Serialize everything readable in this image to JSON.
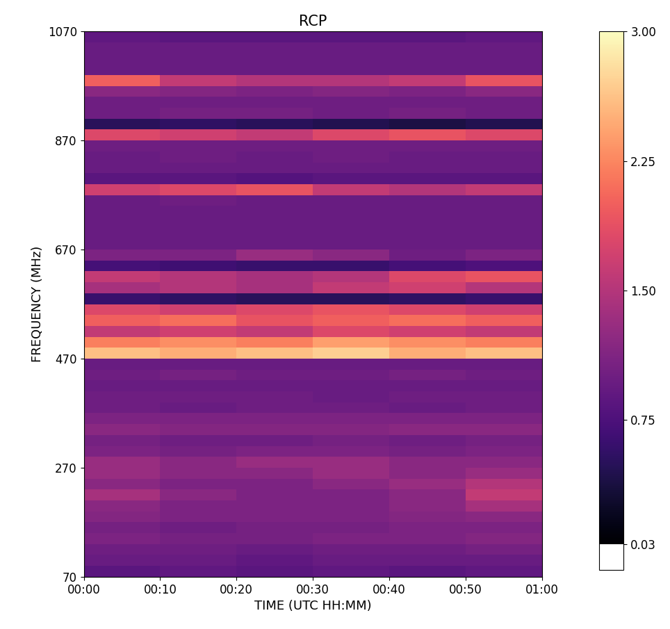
{
  "chart_data": {
    "type": "heatmap",
    "title": "RCP",
    "x_label": "TIME (UTC HH:MM)",
    "y_label": "FREQUENCY (MHz)",
    "color": "magma",
    "xlim": [
      0,
      60
    ],
    "xticks": [
      {
        "value": 0,
        "label": "00:00"
      },
      {
        "value": 10,
        "label": "00:10"
      },
      {
        "value": 20,
        "label": "00:20"
      },
      {
        "value": 30,
        "label": "00:30"
      },
      {
        "value": 40,
        "label": "00:40"
      },
      {
        "value": 50,
        "label": "00:50"
      },
      {
        "value": 60,
        "label": "01:00"
      }
    ],
    "ylim": [
      70,
      1070
    ],
    "yticks": [
      70,
      270,
      470,
      670,
      870,
      1070
    ],
    "time_edges": [
      0,
      10,
      20,
      30,
      40,
      50,
      60
    ],
    "frequency_edges": [
      70,
      90,
      110,
      130,
      150,
      170,
      190,
      210,
      230,
      250,
      270,
      290,
      310,
      330,
      350,
      370,
      390,
      410,
      430,
      450,
      470,
      490,
      510,
      530,
      550,
      570,
      590,
      610,
      630,
      650,
      670,
      690,
      710,
      730,
      750,
      770,
      790,
      810,
      830,
      850,
      870,
      890,
      910,
      930,
      950,
      970,
      990,
      1010,
      1030,
      1050,
      1070
    ],
    "cells": [
      [
        0.85,
        0.9,
        0.85,
        0.9,
        0.85,
        0.9
      ],
      [
        0.95,
        0.95,
        0.9,
        0.95,
        0.95,
        0.95
      ],
      [
        1.0,
        1.0,
        0.95,
        1.0,
        1.0,
        1.05
      ],
      [
        1.1,
        1.05,
        1.05,
        1.1,
        1.1,
        1.15
      ],
      [
        1.05,
        1.0,
        1.05,
        1.05,
        1.1,
        1.1
      ],
      [
        1.15,
        1.1,
        1.1,
        1.1,
        1.15,
        1.2
      ],
      [
        1.2,
        1.1,
        1.1,
        1.1,
        1.2,
        1.4
      ],
      [
        1.4,
        1.2,
        1.1,
        1.1,
        1.2,
        1.6
      ],
      [
        1.2,
        1.1,
        1.1,
        1.2,
        1.3,
        1.5
      ],
      [
        1.3,
        1.2,
        1.2,
        1.3,
        1.2,
        1.3
      ],
      [
        1.3,
        1.2,
        1.3,
        1.3,
        1.2,
        1.2
      ],
      [
        1.1,
        1.05,
        1.1,
        1.1,
        1.05,
        1.1
      ],
      [
        1.05,
        1.0,
        1.0,
        1.05,
        1.0,
        1.05
      ],
      [
        1.2,
        1.15,
        1.15,
        1.15,
        1.2,
        1.2
      ],
      [
        1.1,
        1.1,
        1.1,
        1.1,
        1.1,
        1.1
      ],
      [
        1.0,
        0.95,
        1.0,
        1.0,
        0.95,
        1.0
      ],
      [
        1.0,
        1.0,
        1.0,
        0.95,
        1.0,
        1.0
      ],
      [
        0.95,
        0.95,
        0.95,
        0.95,
        0.95,
        0.95
      ],
      [
        1.0,
        1.05,
        1.0,
        1.0,
        1.05,
        1.0
      ],
      [
        0.95,
        0.95,
        0.95,
        0.95,
        0.95,
        0.95
      ],
      [
        2.6,
        2.5,
        2.6,
        2.7,
        2.5,
        2.6
      ],
      [
        2.2,
        2.3,
        2.2,
        2.4,
        2.3,
        2.2
      ],
      [
        1.6,
        1.7,
        1.6,
        1.8,
        1.7,
        1.6
      ],
      [
        2.0,
        2.1,
        1.9,
        2.0,
        2.1,
        2.0
      ],
      [
        1.8,
        1.7,
        1.8,
        1.9,
        1.8,
        1.7
      ],
      [
        0.6,
        0.55,
        0.5,
        0.5,
        0.55,
        0.6
      ],
      [
        1.4,
        1.5,
        1.4,
        1.6,
        1.7,
        1.5
      ],
      [
        1.6,
        1.5,
        1.4,
        1.5,
        1.8,
        1.9
      ],
      [
        0.7,
        0.65,
        0.6,
        0.6,
        0.7,
        0.75
      ],
      [
        1.1,
        1.1,
        1.3,
        1.2,
        1.0,
        1.1
      ],
      [
        0.95,
        0.95,
        0.95,
        0.95,
        0.95,
        0.95
      ],
      [
        0.95,
        0.95,
        0.95,
        0.95,
        0.95,
        0.95
      ],
      [
        0.95,
        0.95,
        0.95,
        0.95,
        0.95,
        0.95
      ],
      [
        0.95,
        0.95,
        0.95,
        0.95,
        0.95,
        0.95
      ],
      [
        0.95,
        1.0,
        0.95,
        0.95,
        0.95,
        0.95
      ],
      [
        1.7,
        1.8,
        1.9,
        1.6,
        1.5,
        1.6
      ],
      [
        0.85,
        0.85,
        0.8,
        0.85,
        0.85,
        0.85
      ],
      [
        0.95,
        0.95,
        0.95,
        0.95,
        0.95,
        0.95
      ],
      [
        0.95,
        1.0,
        0.95,
        1.0,
        0.95,
        0.95
      ],
      [
        1.0,
        1.0,
        1.0,
        1.0,
        1.0,
        1.0
      ],
      [
        1.8,
        1.7,
        1.6,
        1.8,
        1.9,
        1.8
      ],
      [
        0.5,
        0.55,
        0.5,
        0.45,
        0.4,
        0.45
      ],
      [
        1.0,
        1.05,
        1.05,
        1.0,
        1.05,
        1.0
      ],
      [
        1.0,
        1.0,
        1.0,
        1.0,
        1.0,
        1.0
      ],
      [
        1.2,
        1.15,
        1.1,
        1.15,
        1.1,
        1.2
      ],
      [
        2.0,
        1.6,
        1.5,
        1.5,
        1.6,
        1.9
      ],
      [
        0.95,
        0.95,
        0.95,
        0.95,
        0.95,
        0.95
      ],
      [
        0.95,
        0.95,
        0.95,
        0.95,
        0.95,
        0.95
      ],
      [
        0.95,
        0.95,
        0.95,
        0.95,
        0.95,
        0.95
      ],
      [
        0.9,
        0.85,
        0.85,
        0.85,
        0.85,
        0.9
      ]
    ],
    "color_range": [
      0.03,
      3.0
    ],
    "color_ticks": [
      {
        "value": 0.03,
        "label": "0.03"
      },
      {
        "value": 0.75,
        "label": "0.75"
      },
      {
        "value": 1.5,
        "label": "1.50"
      },
      {
        "value": 2.25,
        "label": "2.25"
      },
      {
        "value": 3.0,
        "label": "3.00"
      }
    ]
  }
}
